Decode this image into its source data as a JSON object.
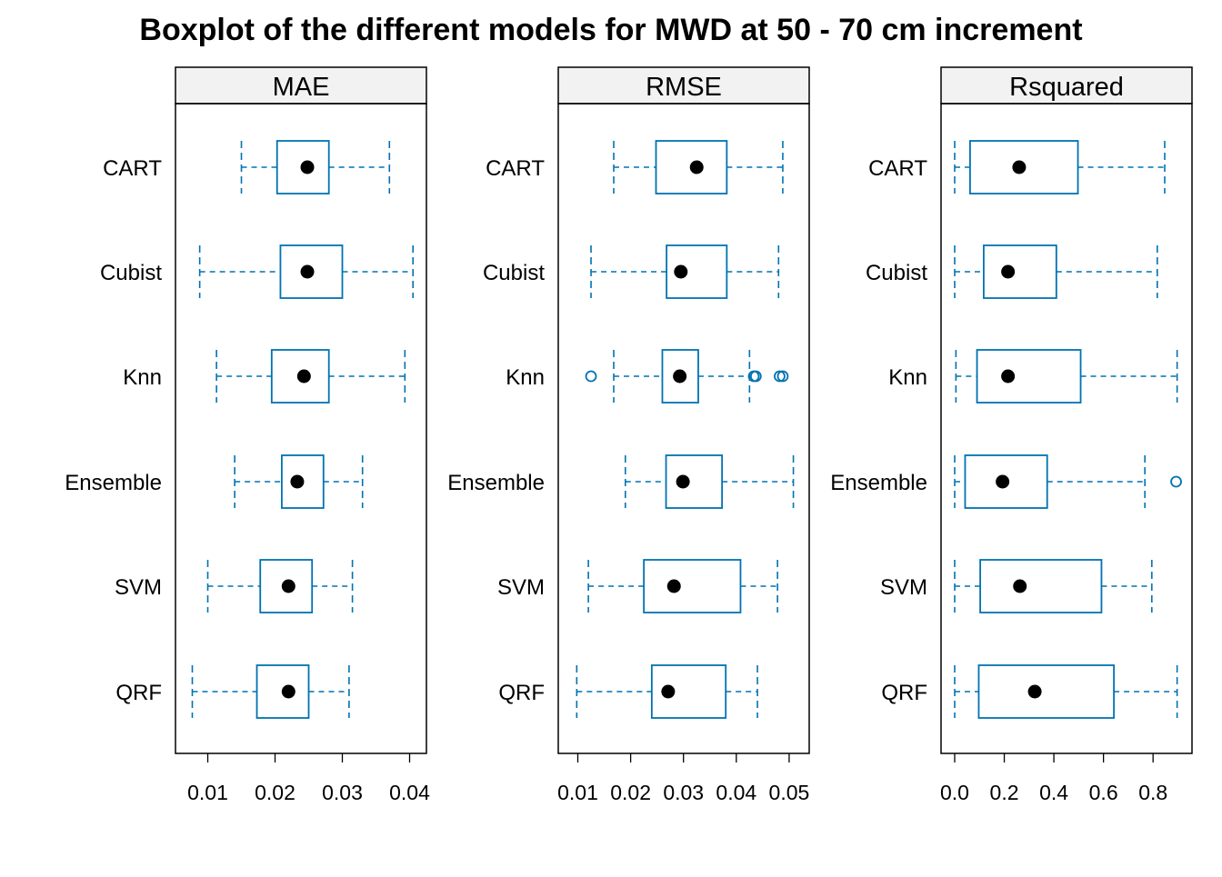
{
  "chart_data": {
    "type": "boxplot",
    "title": "Boxplot of the different models for MWD at 50 - 70 cm increment",
    "orientation": "horizontal",
    "categories": [
      "CART",
      "Cubist",
      "Knn",
      "Ensemble",
      "SVM",
      "QRF"
    ],
    "colors": {
      "box": "#0072B2",
      "median": "#000000",
      "strip_bg": "#F2F2F2",
      "frame": "#000000"
    },
    "panels": [
      {
        "name": "MAE",
        "xlim": [
          0.0052,
          0.0425
        ],
        "ticks": [
          0.01,
          0.02,
          0.03,
          0.04
        ],
        "tick_labels": [
          "0.01",
          "0.02",
          "0.03",
          "0.04"
        ],
        "boxes": [
          {
            "category": "CART",
            "whisker_low": 0.015,
            "q1": 0.0203,
            "median": 0.0248,
            "q3": 0.028,
            "whisker_high": 0.037,
            "outliers": []
          },
          {
            "category": "Cubist",
            "whisker_low": 0.0088,
            "q1": 0.0208,
            "median": 0.0248,
            "q3": 0.03,
            "whisker_high": 0.0405,
            "outliers": []
          },
          {
            "category": "Knn",
            "whisker_low": 0.0113,
            "q1": 0.0195,
            "median": 0.0243,
            "q3": 0.028,
            "whisker_high": 0.0393,
            "outliers": []
          },
          {
            "category": "Ensemble",
            "whisker_low": 0.014,
            "q1": 0.021,
            "median": 0.0233,
            "q3": 0.0272,
            "whisker_high": 0.033,
            "outliers": []
          },
          {
            "category": "SVM",
            "whisker_low": 0.01,
            "q1": 0.0178,
            "median": 0.022,
            "q3": 0.0255,
            "whisker_high": 0.0315,
            "outliers": []
          },
          {
            "category": "QRF",
            "whisker_low": 0.0077,
            "q1": 0.0173,
            "median": 0.022,
            "q3": 0.025,
            "whisker_high": 0.031,
            "outliers": []
          }
        ]
      },
      {
        "name": "RMSE",
        "xlim": [
          0.0063,
          0.0538
        ],
        "ticks": [
          0.01,
          0.02,
          0.03,
          0.04,
          0.05
        ],
        "tick_labels": [
          "0.01",
          "0.02",
          "0.03",
          "0.04",
          "0.05"
        ],
        "boxes": [
          {
            "category": "CART",
            "whisker_low": 0.0168,
            "q1": 0.0248,
            "median": 0.0325,
            "q3": 0.0382,
            "whisker_high": 0.0488,
            "outliers": []
          },
          {
            "category": "Cubist",
            "whisker_low": 0.0125,
            "q1": 0.0268,
            "median": 0.0295,
            "q3": 0.0382,
            "whisker_high": 0.048,
            "outliers": []
          },
          {
            "category": "Knn",
            "whisker_low": 0.0168,
            "q1": 0.026,
            "median": 0.0293,
            "q3": 0.0328,
            "whisker_high": 0.0425,
            "outliers": [
              0.0125,
              0.0433,
              0.0437,
              0.0482,
              0.0488
            ]
          },
          {
            "category": "Ensemble",
            "whisker_low": 0.019,
            "q1": 0.0267,
            "median": 0.0299,
            "q3": 0.0373,
            "whisker_high": 0.0508,
            "outliers": []
          },
          {
            "category": "SVM",
            "whisker_low": 0.012,
            "q1": 0.0225,
            "median": 0.0282,
            "q3": 0.0408,
            "whisker_high": 0.0478,
            "outliers": []
          },
          {
            "category": "QRF",
            "whisker_low": 0.0098,
            "q1": 0.024,
            "median": 0.0271,
            "q3": 0.038,
            "whisker_high": 0.044,
            "outliers": []
          }
        ]
      },
      {
        "name": "Rsquared",
        "xlim": [
          -0.055,
          0.957
        ],
        "ticks": [
          0.0,
          0.2,
          0.4,
          0.6,
          0.8
        ],
        "tick_labels": [
          "0.0",
          "0.2",
          "0.4",
          "0.6",
          "0.8"
        ],
        "boxes": [
          {
            "category": "CART",
            "whisker_low": 0.0,
            "q1": 0.062,
            "median": 0.26,
            "q3": 0.497,
            "whisker_high": 0.847,
            "outliers": []
          },
          {
            "category": "Cubist",
            "whisker_low": 0.0,
            "q1": 0.117,
            "median": 0.215,
            "q3": 0.41,
            "whisker_high": 0.817,
            "outliers": []
          },
          {
            "category": "Knn",
            "whisker_low": 0.005,
            "q1": 0.09,
            "median": 0.215,
            "q3": 0.508,
            "whisker_high": 0.897,
            "outliers": []
          },
          {
            "category": "Ensemble",
            "whisker_low": 0.0,
            "q1": 0.042,
            "median": 0.193,
            "q3": 0.373,
            "whisker_high": 0.767,
            "outliers": [
              0.893
            ]
          },
          {
            "category": "SVM",
            "whisker_low": 0.0,
            "q1": 0.103,
            "median": 0.263,
            "q3": 0.592,
            "whisker_high": 0.795,
            "outliers": []
          },
          {
            "category": "QRF",
            "whisker_low": 0.0,
            "q1": 0.097,
            "median": 0.323,
            "q3": 0.642,
            "whisker_high": 0.897,
            "outliers": []
          }
        ]
      }
    ]
  }
}
